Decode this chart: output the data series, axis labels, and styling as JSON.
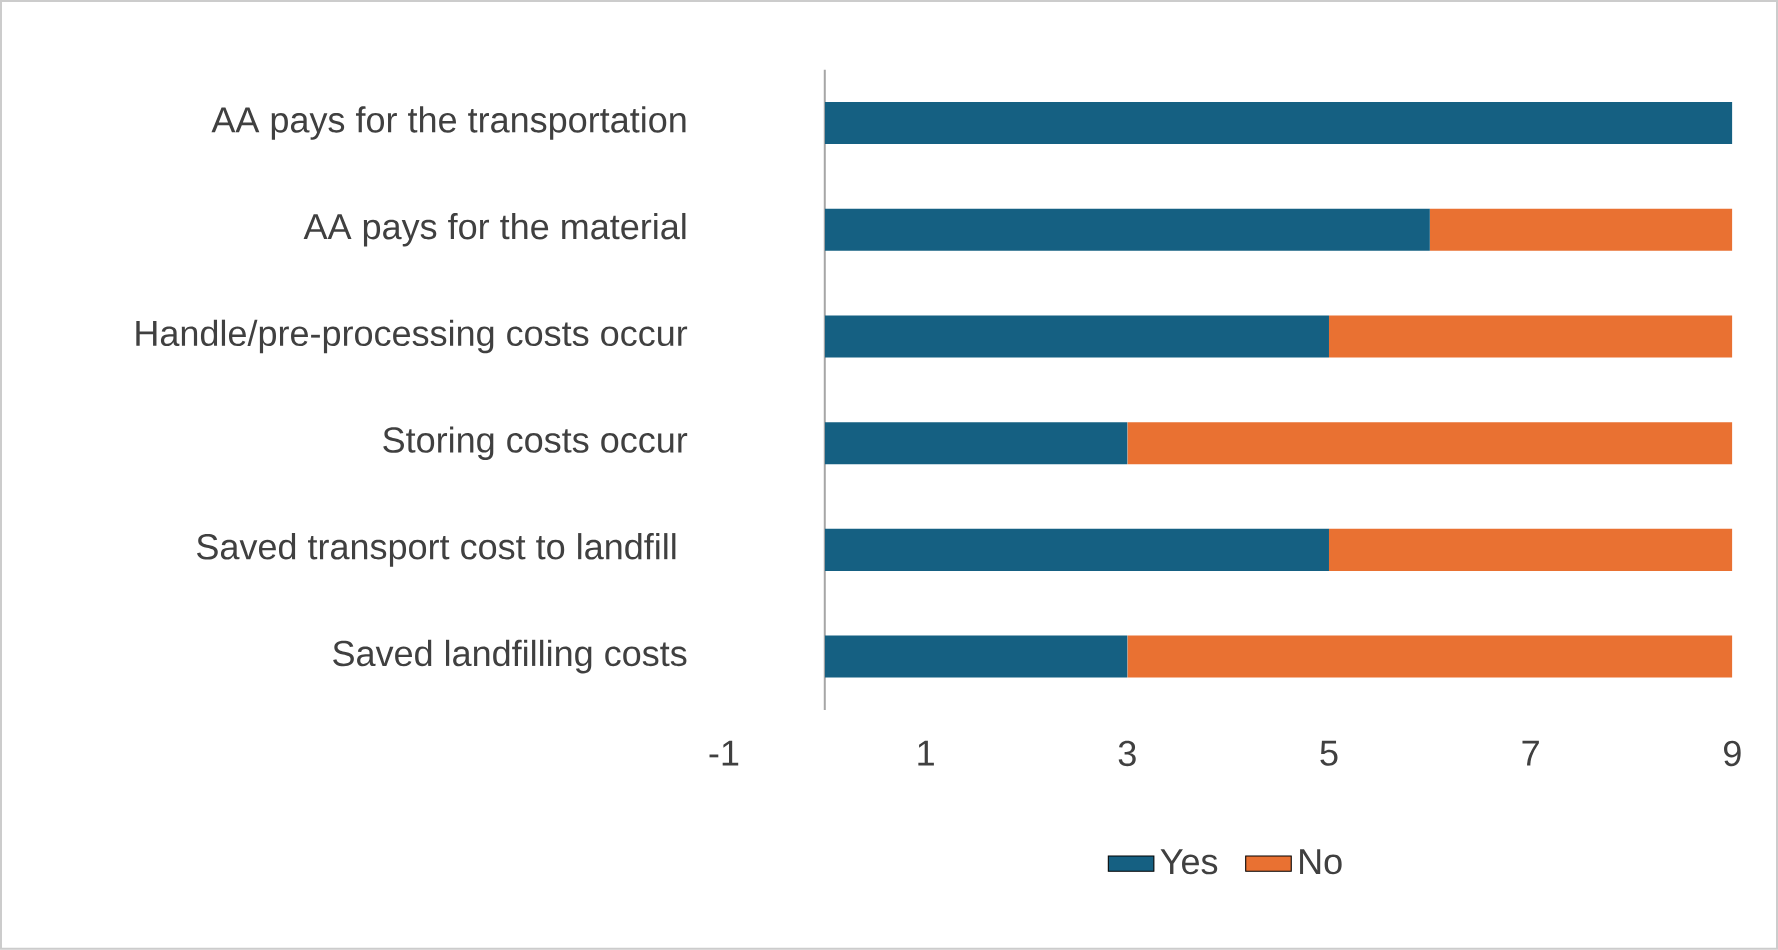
{
  "chart_data": {
    "type": "bar",
    "orientation": "horizontal",
    "stacked": true,
    "categories": [
      "AA pays for the transportation",
      "AA pays for the material",
      "Handle/pre-processing costs occur",
      "Storing costs occur",
      "Saved transport cost to landfill ",
      "Saved landfilling costs"
    ],
    "series": [
      {
        "name": "Yes",
        "color": "#156082",
        "values": [
          9,
          6,
          5,
          3,
          5,
          3
        ]
      },
      {
        "name": "No",
        "color": "#e97132",
        "values": [
          0,
          3,
          4,
          6,
          4,
          6
        ]
      }
    ],
    "xlim": [
      -1,
      9
    ],
    "xticks": [
      -1,
      1,
      3,
      5,
      7,
      9
    ],
    "grid": false,
    "legend": "bottom"
  }
}
